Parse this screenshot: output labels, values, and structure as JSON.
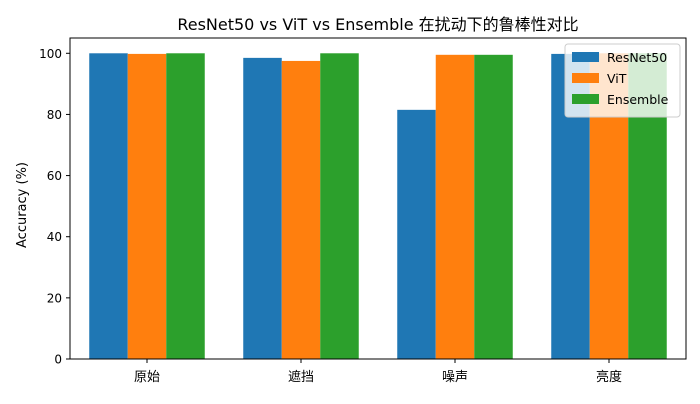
{
  "chart_data": {
    "type": "bar",
    "title": "ResNet50 vs ViT vs Ensemble 在扰动下的鲁棒性对比",
    "xlabel": "",
    "ylabel": "Accuracy (%)",
    "categories": [
      "原始",
      "遮挡",
      "噪声",
      "亮度"
    ],
    "series": [
      {
        "name": "ResNet50",
        "color": "#1f77b4",
        "values": [
          100.0,
          98.5,
          81.5,
          99.8
        ]
      },
      {
        "name": "ViT",
        "color": "#ff7f0e",
        "values": [
          99.8,
          97.5,
          99.5,
          100.0
        ]
      },
      {
        "name": "Ensemble",
        "color": "#2ca02c",
        "values": [
          100.0,
          100.0,
          99.5,
          100.0
        ]
      }
    ],
    "ylim": [
      0,
      105
    ],
    "yticks": [
      0,
      20,
      40,
      60,
      80,
      100
    ],
    "grid": false,
    "legend_position": "top-right"
  }
}
